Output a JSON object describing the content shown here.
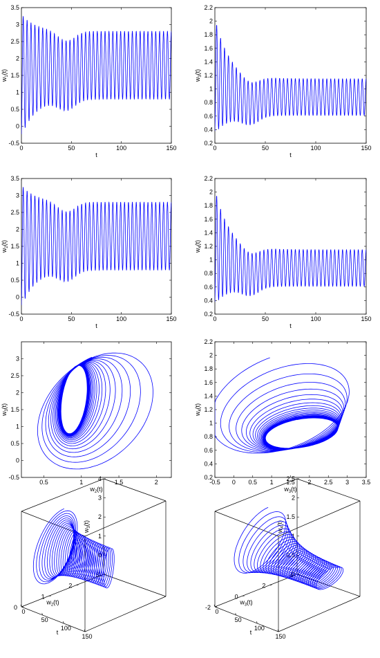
{
  "chart_data": [
    {
      "type": "line",
      "id": "w1_vs_t",
      "xlabel": "t",
      "ylabel": "w1(t)",
      "xlabel_main": "t",
      "ylabel_main": "w",
      "ylabel_sub": "1",
      "ylabel_suffix": "(t)",
      "xlim": [
        0,
        150
      ],
      "ylim": [
        -0.5,
        3.5
      ],
      "xticks": [
        0,
        50,
        100,
        150
      ],
      "yticks": [
        -0.5,
        0,
        0.5,
        1,
        1.5,
        2,
        2.5,
        3,
        3.5
      ],
      "xticklabels": [
        "0",
        "50",
        "100",
        "150"
      ],
      "yticklabels": [
        "-0.5",
        "0",
        "0.5",
        "1",
        "1.5",
        "2",
        "2.5",
        "3",
        "3.5"
      ],
      "series": [
        {
          "color": "#0000ff",
          "signal": {
            "center_start": 1.5,
            "center_end": 1.8,
            "amp_start": 1.8,
            "amp_end": 1.0,
            "period": 3.9,
            "settle": 14,
            "dip": 0.3,
            "dip_at": 45
          }
        }
      ]
    },
    {
      "type": "line",
      "id": "w3_vs_t",
      "xlabel": "t",
      "ylabel": "w3(t)",
      "xlabel_main": "t",
      "ylabel_main": "w",
      "ylabel_sub": "3",
      "ylabel_suffix": "(t)",
      "xlim": [
        0,
        150
      ],
      "ylim": [
        0.2,
        2.2
      ],
      "xticks": [
        0,
        50,
        100,
        150
      ],
      "yticks": [
        0.2,
        0.4,
        0.6,
        0.8,
        1,
        1.2,
        1.4,
        1.6,
        1.8,
        2,
        2.2
      ],
      "xticklabels": [
        "0",
        "50",
        "100",
        "150"
      ],
      "yticklabels": [
        "0.2",
        "0.4",
        "0.6",
        "0.8",
        "1",
        "1.2",
        "1.4",
        "1.6",
        "1.8",
        "2",
        "2.2"
      ],
      "series": [
        {
          "color": "#0000ff",
          "signal": {
            "center_start": 1.2,
            "center_end": 0.88,
            "amp_start": 0.85,
            "amp_end": 0.27,
            "period": 3.9,
            "settle": 14,
            "dip": 0.12,
            "dip_at": 35
          }
        }
      ]
    },
    {
      "type": "line",
      "id": "w2_vs_t",
      "xlabel": "t",
      "ylabel": "w2(t)",
      "xlabel_main": "t",
      "ylabel_main": "w",
      "ylabel_sub": "2",
      "ylabel_suffix": "(t)",
      "xlim": [
        0,
        150
      ],
      "ylim": [
        -0.5,
        3.5
      ],
      "xticks": [
        0,
        50,
        100,
        150
      ],
      "yticks": [
        -0.5,
        0,
        0.5,
        1,
        1.5,
        2,
        2.5,
        3,
        3.5
      ],
      "xticklabels": [
        "0",
        "50",
        "100",
        "150"
      ],
      "yticklabels": [
        "-0.5",
        "0",
        "0.5",
        "1",
        "1.5",
        "2",
        "2.5",
        "3",
        "3.5"
      ],
      "series": [
        {
          "color": "#0000ff",
          "signal": {
            "center_start": 1.5,
            "center_end": 1.8,
            "amp_start": 1.8,
            "amp_end": 1.0,
            "period": 3.9,
            "settle": 14,
            "dip": 0.3,
            "dip_at": 45
          }
        }
      ]
    },
    {
      "type": "line",
      "id": "w4_vs_t",
      "xlabel": "t",
      "ylabel": "w4(t)",
      "xlabel_main": "t",
      "ylabel_main": "w",
      "ylabel_sub": "4",
      "ylabel_suffix": "(t)",
      "xlim": [
        0,
        150
      ],
      "ylim": [
        0.2,
        2.2
      ],
      "xticks": [
        0,
        50,
        100,
        150
      ],
      "yticks": [
        0.2,
        0.4,
        0.6,
        0.8,
        1,
        1.2,
        1.4,
        1.6,
        1.8,
        2,
        2.2
      ],
      "xticklabels": [
        "0",
        "50",
        "100",
        "150"
      ],
      "yticklabels": [
        "0.2",
        "0.4",
        "0.6",
        "0.8",
        "1",
        "1.2",
        "1.4",
        "1.6",
        "1.8",
        "2",
        "2.2"
      ],
      "series": [
        {
          "color": "#0000ff",
          "signal": {
            "center_start": 1.2,
            "center_end": 0.88,
            "amp_start": 0.85,
            "amp_end": 0.27,
            "period": 3.9,
            "settle": 14,
            "dip": 0.12,
            "dip_at": 35
          }
        }
      ]
    },
    {
      "type": "line",
      "id": "phase_w2_w3",
      "xlabel": "w2(t)",
      "ylabel": "w3(t)",
      "xlabel_main": "w",
      "xlabel_sub": "2",
      "xlabel_suffix": "(t)",
      "ylabel_main": "w",
      "ylabel_sub": "3",
      "ylabel_suffix": "(t)",
      "xlim": [
        0.2,
        2.2
      ],
      "ylim": [
        -0.5,
        3.5
      ],
      "xticks": [
        0.5,
        1,
        1.5,
        2
      ],
      "yticks": [
        -0.5,
        0,
        0.5,
        1,
        1.5,
        2,
        2.5,
        3
      ],
      "xticklabels": [
        "0.5",
        "1",
        "1.5",
        "2"
      ],
      "yticklabels": [
        "-0.5",
        "0",
        "0.5",
        "1",
        "1.5",
        "2",
        "2.5",
        "3"
      ],
      "series": [
        {
          "color": "#0000ff",
          "orbit": {
            "cx_start": 1.25,
            "cx_end": 0.9,
            "rx_start": 0.85,
            "rx_end": 0.17,
            "cy_start": 1.45,
            "cy_end": 1.8,
            "ry_start": 1.8,
            "ry_end": 1.0,
            "turns": 24
          }
        }
      ]
    },
    {
      "type": "line",
      "id": "phase_w3_w4",
      "xlabel": "w3(t)",
      "ylabel": "w4(t)",
      "xlabel_main": "w",
      "xlabel_sub": "3",
      "xlabel_suffix": "(t)",
      "ylabel_main": "w",
      "ylabel_sub": "4",
      "ylabel_suffix": "(t)",
      "xlim": [
        -0.5,
        3.5
      ],
      "ylim": [
        0.2,
        2.2
      ],
      "xticks": [
        -0.5,
        0,
        0.5,
        1,
        1.5,
        2,
        2.5,
        3,
        3.5
      ],
      "yticks": [
        0.2,
        0.4,
        0.6,
        0.8,
        1,
        1.2,
        1.4,
        1.6,
        1.8,
        2,
        2.2
      ],
      "xticklabels": [
        "-0.5",
        "0",
        "0.5",
        "1",
        "1.5",
        "2",
        "2.5",
        "3",
        "3.5"
      ],
      "yticklabels": [
        "0.2",
        "0.4",
        "0.6",
        "0.8",
        "1",
        "1.2",
        "1.4",
        "1.6",
        "1.8",
        "2",
        "2.2"
      ],
      "series": [
        {
          "color": "#0000ff",
          "orbit": {
            "cx_start": 1.2,
            "cx_end": 1.8,
            "rx_start": 1.9,
            "rx_end": 0.95,
            "cy_start": 1.3,
            "cy_end": 0.85,
            "ry_start": 0.75,
            "ry_end": 0.22,
            "turns": 24
          }
        }
      ]
    },
    {
      "type": "line3d",
      "id": "3d_w2_t_w3",
      "xlabel": "t",
      "ylabel": "w2(t)",
      "zlabel": "w3(t)",
      "xlabel_main": "t",
      "ylabel_main": "w",
      "ylabel_sub": "2",
      "ylabel_suffix": "(t)",
      "zlabel_main": "w",
      "zlabel_sub": "3",
      "zlabel_suffix": "(t)",
      "xlim": [
        0,
        150
      ],
      "ylim": [
        0,
        3
      ],
      "zlim": [
        -1,
        4
      ],
      "xticks": [
        0,
        50,
        100,
        150
      ],
      "yticks": [
        0,
        1,
        2,
        3
      ],
      "zticks": [
        -1,
        0,
        1,
        2,
        3,
        4
      ],
      "xticklabels": [
        "0",
        "50",
        "100",
        "150"
      ],
      "yticklabels": [
        "0",
        "1",
        "2",
        "3"
      ],
      "zticklabels": [
        "-1",
        "0",
        "1",
        "2",
        "3",
        "4"
      ],
      "series": [
        {
          "color": "#0000ff",
          "helix": {
            "t_end": 150,
            "c2_start": 1.25,
            "c2_end": 0.9,
            "r2_start": 0.85,
            "r2_end": 0.17,
            "c3_start": 1.45,
            "c3_end": 1.8,
            "r3_start": 1.8,
            "r3_end": 1.0,
            "turns": 34
          }
        }
      ]
    },
    {
      "type": "line3d",
      "id": "3d_w3_t_w4",
      "xlabel": "t",
      "ylabel": "w3(t)",
      "zlabel": "w4(t)",
      "xlabel_main": "t",
      "ylabel_main": "w",
      "ylabel_sub": "3",
      "ylabel_suffix": "(t)",
      "zlabel_main": "w",
      "zlabel_sub": "4",
      "zlabel_suffix": "(t)",
      "xlim": [
        0,
        150
      ],
      "ylim": [
        -2,
        4
      ],
      "zlim": [
        0,
        2.5
      ],
      "xticks": [
        0,
        50,
        100,
        150
      ],
      "yticks": [
        -2,
        0,
        2,
        4
      ],
      "zticks": [
        0,
        0.5,
        1,
        1.5,
        2,
        2.5
      ],
      "xticklabels": [
        "0",
        "50",
        "100",
        "150"
      ],
      "yticklabels": [
        "-2",
        "0",
        "2",
        "4"
      ],
      "zticklabels": [
        "0",
        "0.5",
        "1",
        "1.5",
        "2",
        "2.5"
      ],
      "series": [
        {
          "color": "#0000ff",
          "helix": {
            "t_end": 150,
            "c2_start": 1.2,
            "c2_end": 1.8,
            "r2_start": 1.9,
            "r2_end": 0.95,
            "c3_start": 1.3,
            "c3_end": 0.85,
            "r3_start": 0.75,
            "r3_end": 0.22,
            "turns": 34
          }
        }
      ]
    }
  ]
}
